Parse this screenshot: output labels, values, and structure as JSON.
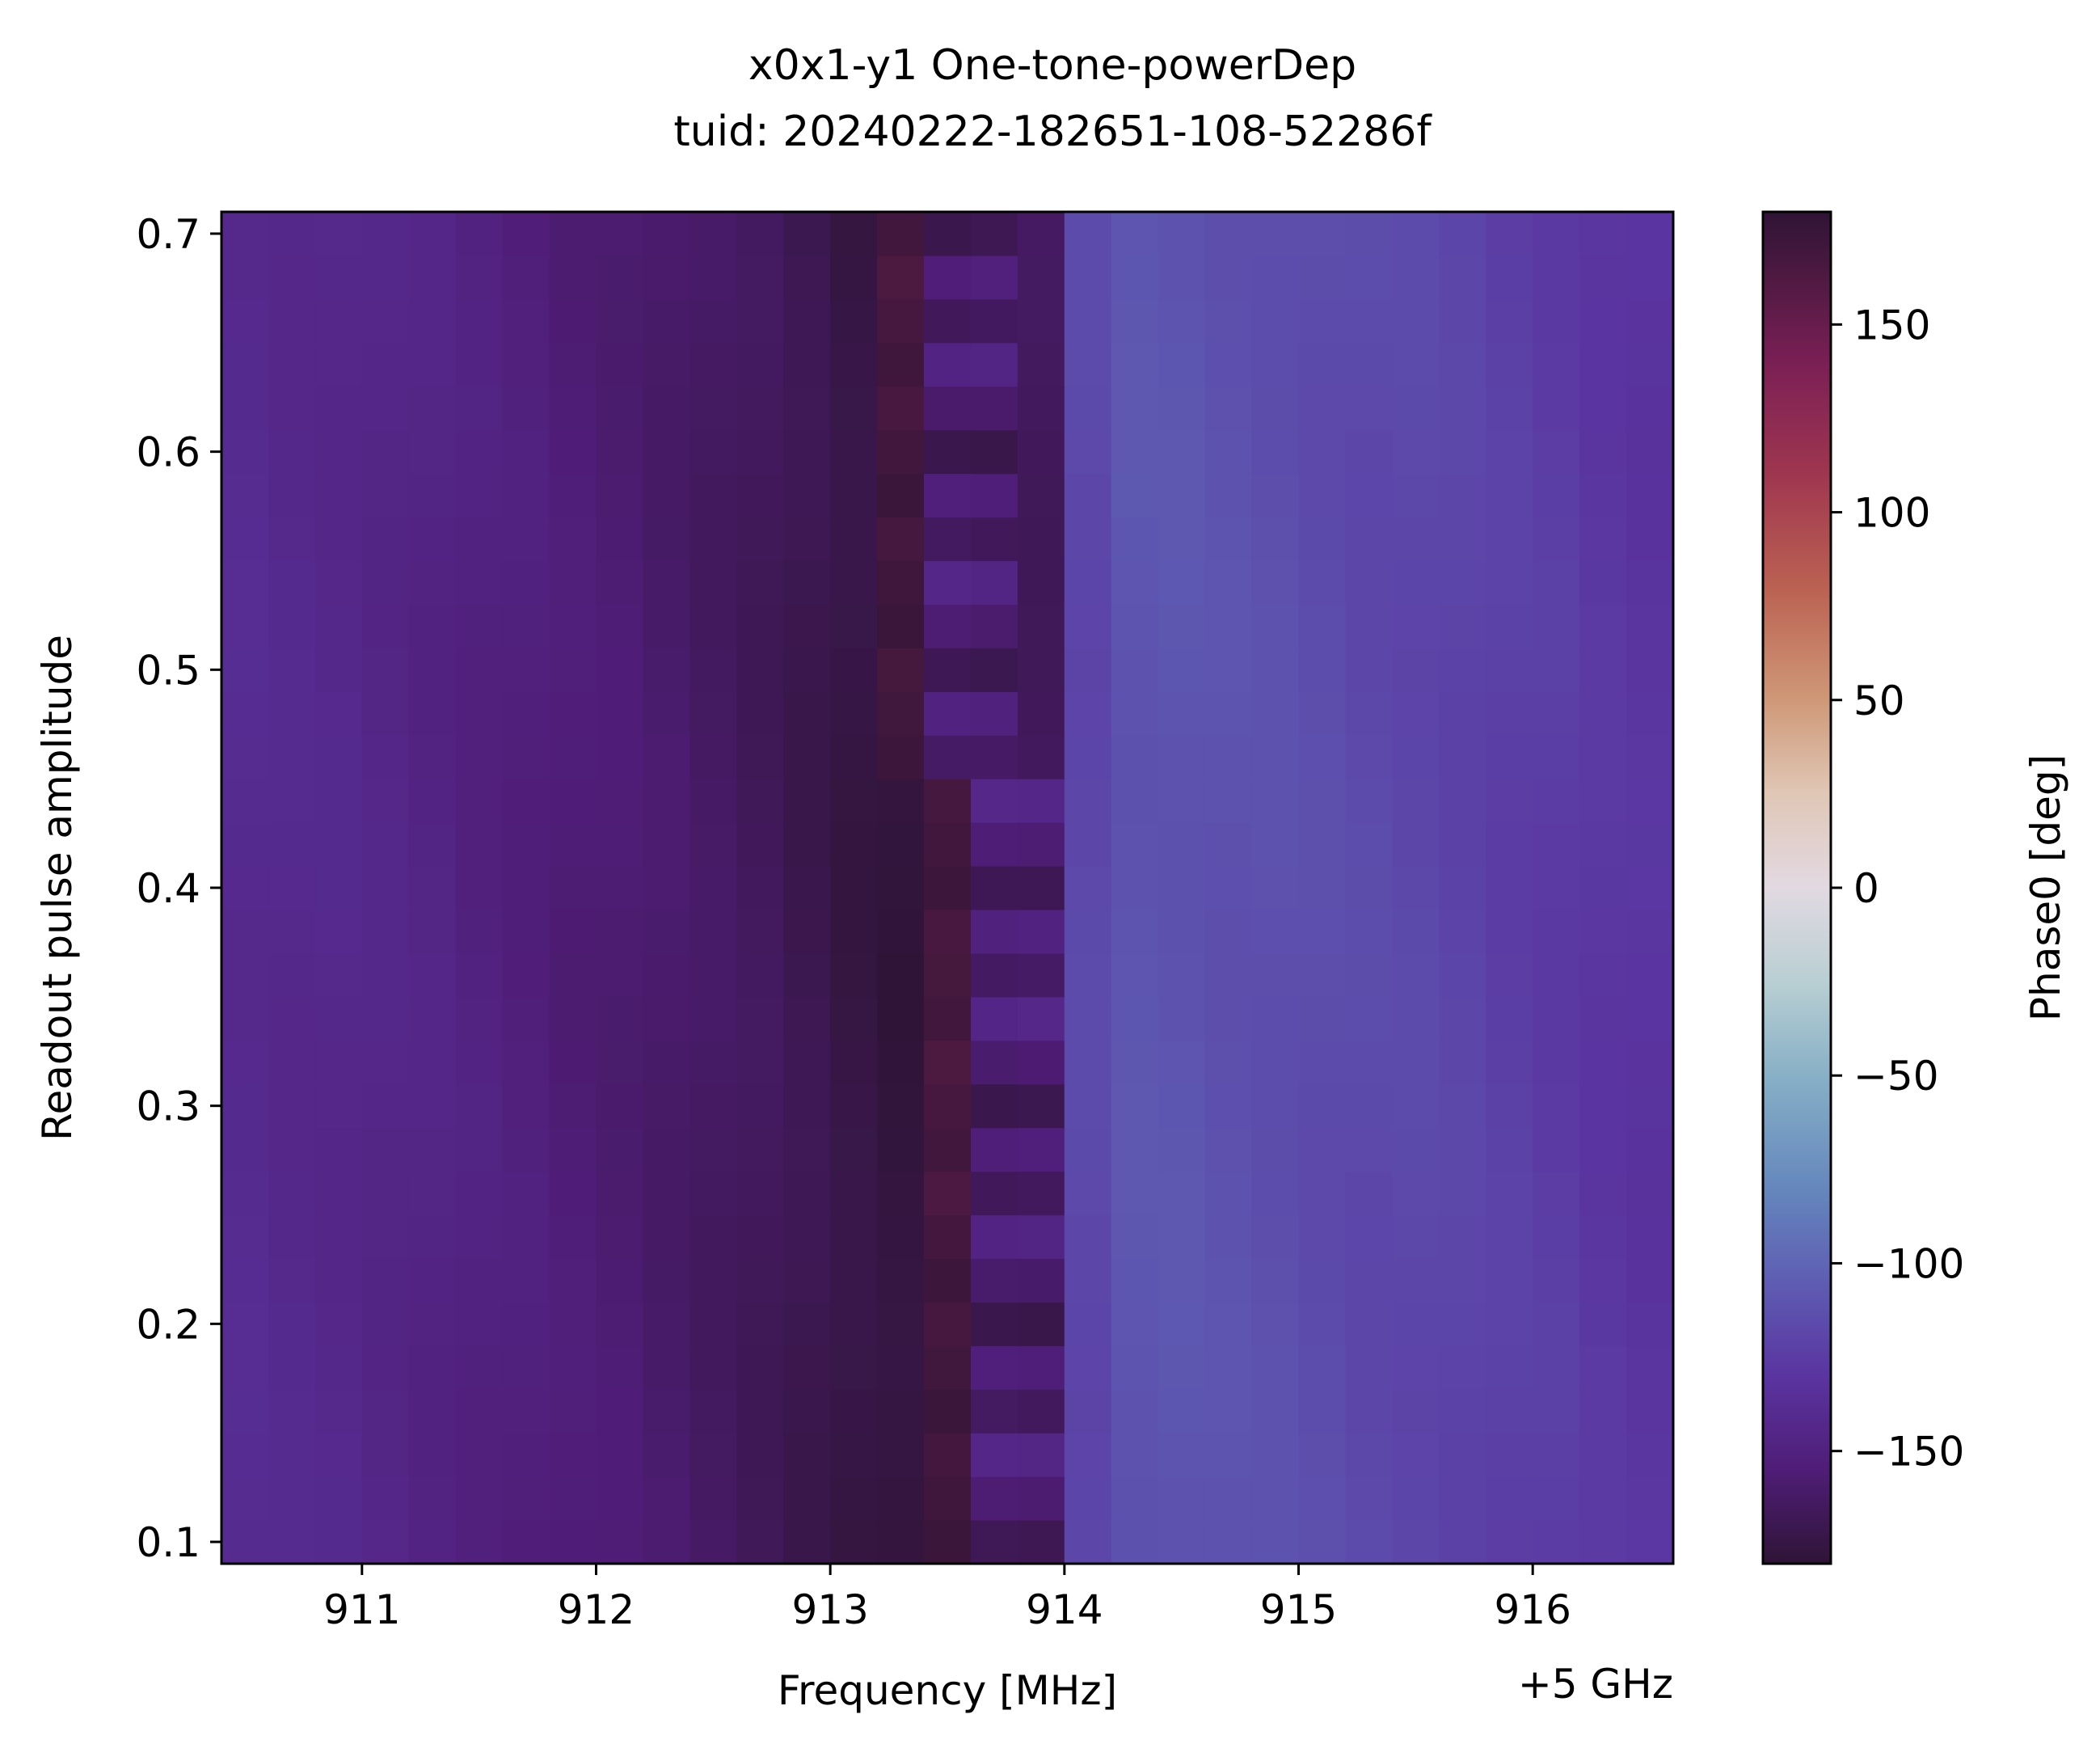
{
  "chart_data": {
    "type": "heatmap",
    "title_line1": "x0x1-y1 One-tone-powerDep",
    "title_line2": "tuid: 20240222-182651-108-52286f",
    "xlabel": "Frequency [MHz]",
    "x_offset_label": "+5 GHz",
    "ylabel": "Readout pulse amplitude",
    "colorbar_label": "Phase0 [deg]",
    "x_range": [
      910.4,
      916.6
    ],
    "y_range": [
      0.09,
      0.71
    ],
    "x_cell_centers_start": 910.5,
    "x_step": 0.2,
    "x_count": 31,
    "y_cell_centers_start": 0.1,
    "y_step": 0.02,
    "y_count": 31,
    "x_ticks": [
      911,
      912,
      913,
      914,
      915,
      916
    ],
    "x_tick_labels": [
      "911",
      "912",
      "913",
      "914",
      "915",
      "916"
    ],
    "y_ticks": [
      0.1,
      0.2,
      0.3,
      0.4,
      0.5,
      0.6,
      0.7
    ],
    "y_tick_labels": [
      "0.1",
      "0.2",
      "0.3",
      "0.4",
      "0.5",
      "0.6",
      "0.7"
    ],
    "colorbar_range": [
      -180,
      180
    ],
    "colorbar_ticks": [
      -150,
      -100,
      -50,
      0,
      50,
      100,
      150
    ],
    "colorbar_tick_labels": [
      "−150",
      "−100",
      "−50",
      "0",
      "50",
      "100",
      "150"
    ],
    "colormap": "twilight_shifted",
    "colormap_stops": [
      {
        "v": -180,
        "color": "#2f1436"
      },
      {
        "v": -155,
        "color": "#4f1d77"
      },
      {
        "v": -130,
        "color": "#5a34a0"
      },
      {
        "v": -105,
        "color": "#5e5db3"
      },
      {
        "v": -80,
        "color": "#6587bd"
      },
      {
        "v": -50,
        "color": "#88b0c6"
      },
      {
        "v": -25,
        "color": "#b9cfd3"
      },
      {
        "v": 0,
        "color": "#e2d9e2"
      },
      {
        "v": 25,
        "color": "#e0c7b6"
      },
      {
        "v": 50,
        "color": "#cf9877"
      },
      {
        "v": 80,
        "color": "#bb6152"
      },
      {
        "v": 110,
        "color": "#9f3650"
      },
      {
        "v": 140,
        "color": "#7a1f55"
      },
      {
        "v": 160,
        "color": "#531a44"
      },
      {
        "v": 180,
        "color": "#2f1436"
      }
    ],
    "phase_model": {
      "column_base_deg": [
        -140,
        -142,
        -143,
        -145,
        -147,
        -150,
        -152,
        -155,
        -157,
        -160,
        -163,
        -166,
        -170,
        -174,
        -177,
        175,
        170,
        -165,
        -118,
        -110,
        -110,
        -112,
        -113,
        -115,
        -117,
        -118,
        -120,
        -123,
        -125,
        -128,
        -130
      ],
      "resonance_freq_low_amp": 913.65,
      "resonance_freq_high_amp": 913.45,
      "resonance_row_transition": 18
    }
  }
}
